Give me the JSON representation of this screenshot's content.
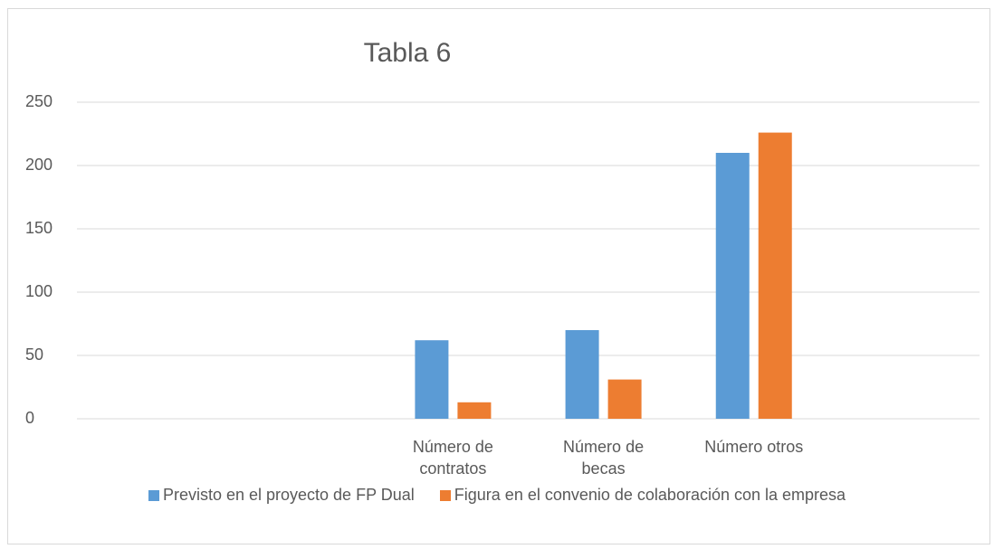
{
  "chart_data": {
    "type": "bar",
    "title": "Tabla 6",
    "categories": [
      null,
      null,
      "Número de contratos",
      "Número de becas",
      "Número otros",
      null
    ],
    "series": [
      {
        "name": "Previsto en el proyecto de FP Dual",
        "color": "#5b9bd5",
        "values": [
          null,
          null,
          62,
          70,
          210,
          null
        ]
      },
      {
        "name": "Figura en el convenio de colaboración con la empresa",
        "color": "#ed7d31",
        "values": [
          null,
          null,
          13,
          31,
          226,
          null
        ]
      }
    ],
    "ylim": [
      0,
      250
    ],
    "yticks": [
      0,
      50,
      100,
      150,
      200,
      250
    ],
    "grid": true
  }
}
